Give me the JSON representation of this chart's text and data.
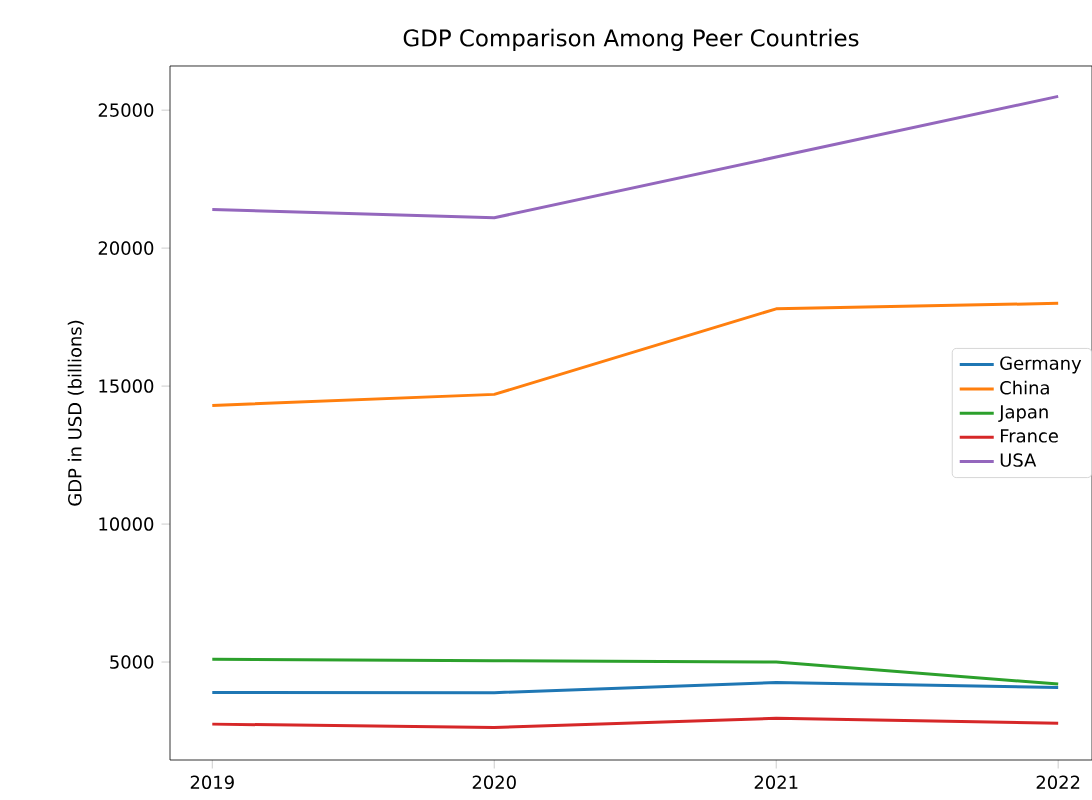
{
  "chart_data": {
    "type": "line",
    "title": "GDP Comparison Among Peer Countries",
    "ylabel": "GDP in USD (billions)",
    "x": [
      2019,
      2020,
      2021,
      2022
    ],
    "series": [
      {
        "name": "Germany",
        "color": "#1f77b4",
        "values": [
          3900,
          3890,
          4260,
          4080
        ]
      },
      {
        "name": "China",
        "color": "#ff7f0e",
        "values": [
          14300,
          14700,
          17800,
          18000
        ]
      },
      {
        "name": "Japan",
        "color": "#2ca02c",
        "values": [
          5100,
          5050,
          5000,
          4200
        ]
      },
      {
        "name": "France",
        "color": "#d62728",
        "values": [
          2750,
          2630,
          2960,
          2780
        ]
      },
      {
        "name": "USA",
        "color": "#9467bd",
        "values": [
          21400,
          21100,
          23300,
          25500
        ]
      }
    ],
    "xlim": [
      2018.85,
      2022.12
    ],
    "ylim": [
      1450,
      26600
    ],
    "xticks": [
      2019,
      2020,
      2021,
      2022
    ],
    "yticks": [
      5000,
      10000,
      15000,
      20000,
      25000
    ],
    "legend": "right",
    "grid": false,
    "marker": "none",
    "line_style": "solid"
  }
}
